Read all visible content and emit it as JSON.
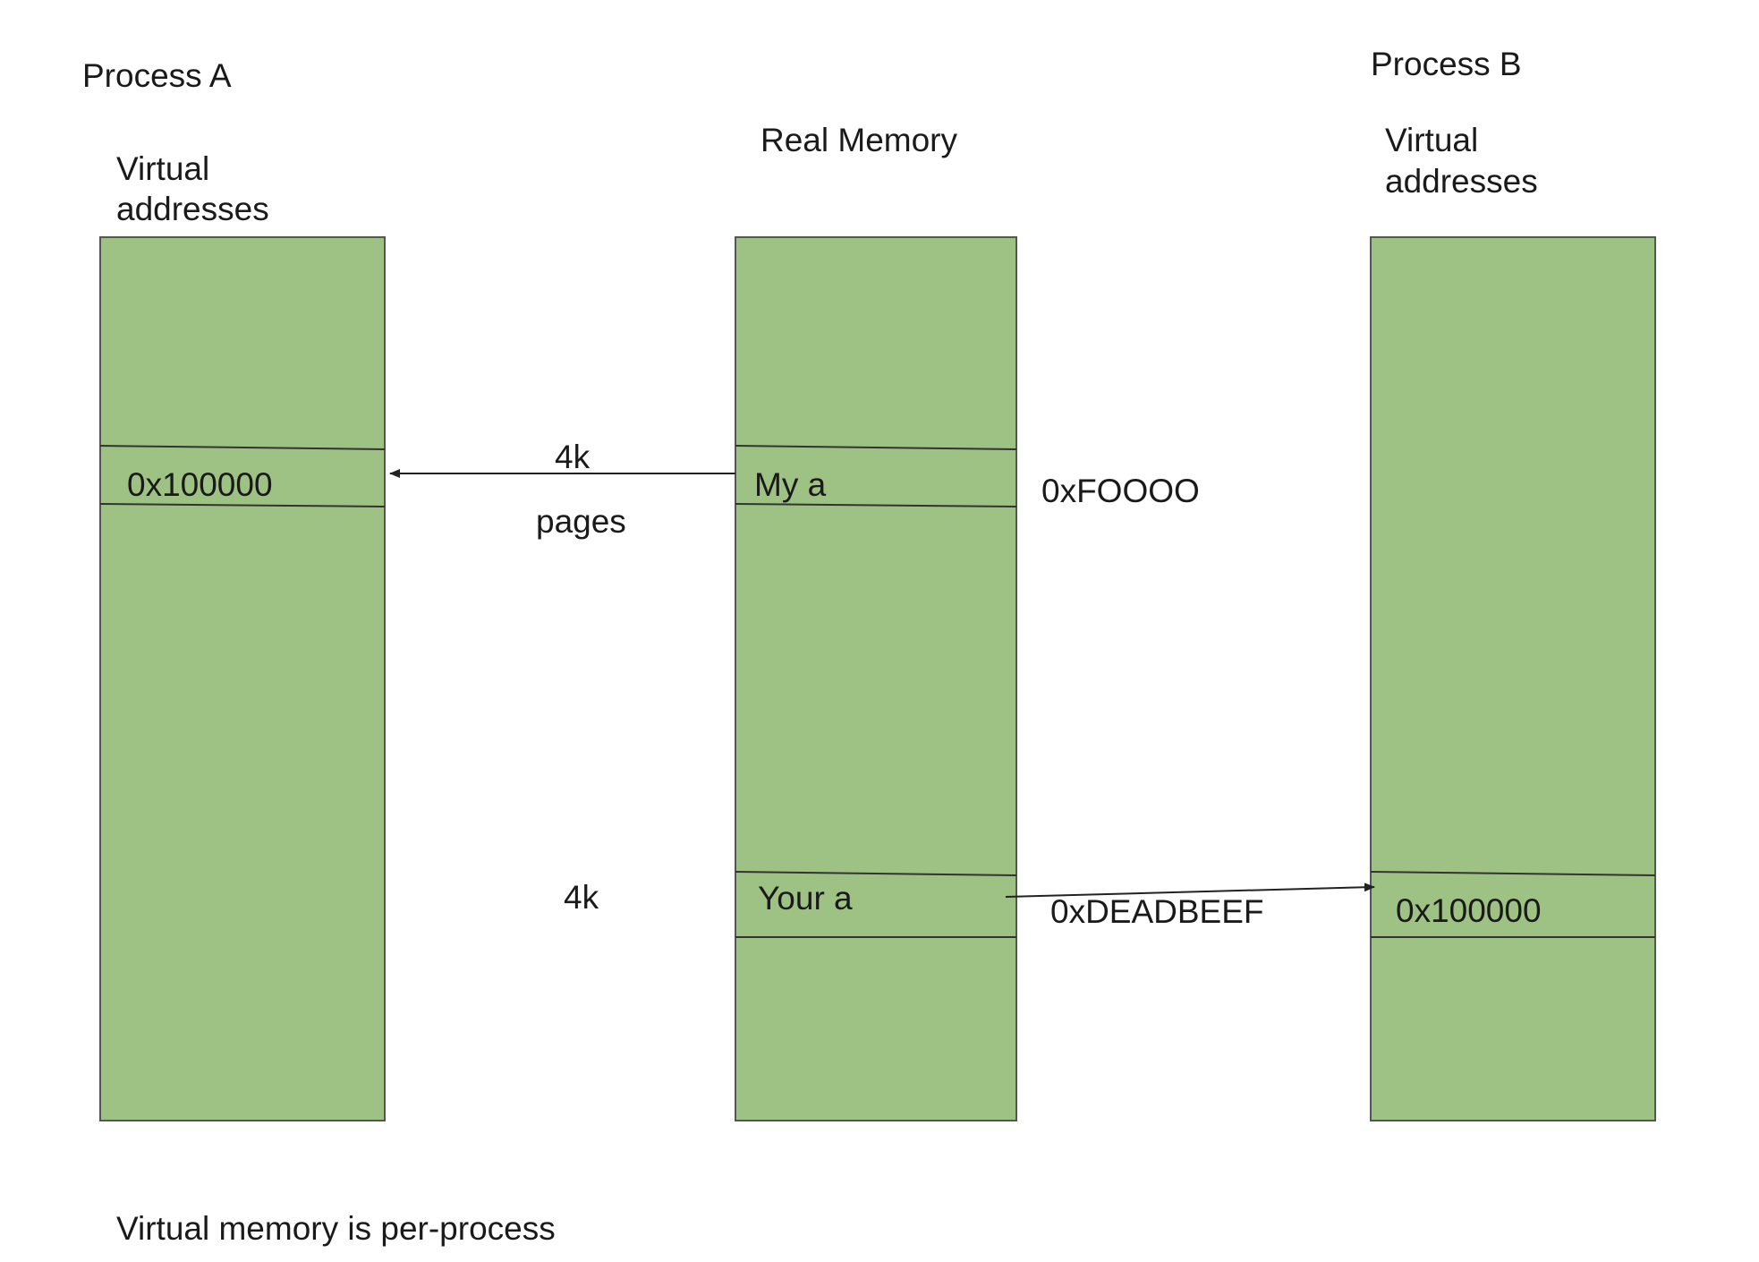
{
  "process_a": {
    "title": "Process A",
    "virtual_label_line1": "Virtual",
    "virtual_label_line2": "addresses",
    "page_address": "0x100000"
  },
  "real_memory": {
    "title": "Real Memory",
    "page_1_label": "My a",
    "page_1_address": "0xFOOOO",
    "page_2_label": "Your a",
    "page_2_address": "0xDEADBEEF"
  },
  "process_b": {
    "title": "Process B",
    "virtual_label_line1": "Virtual",
    "virtual_label_line2": "addresses",
    "page_address": "0x100000"
  },
  "annotations": {
    "page_size_top": "4k",
    "page_unit": "pages",
    "page_size_bottom": "4k"
  },
  "footer": {
    "caption": "Virtual memory is per-process"
  },
  "colors": {
    "memory_fill": "#9ec283",
    "outline": "#555555",
    "line": "#222222"
  }
}
